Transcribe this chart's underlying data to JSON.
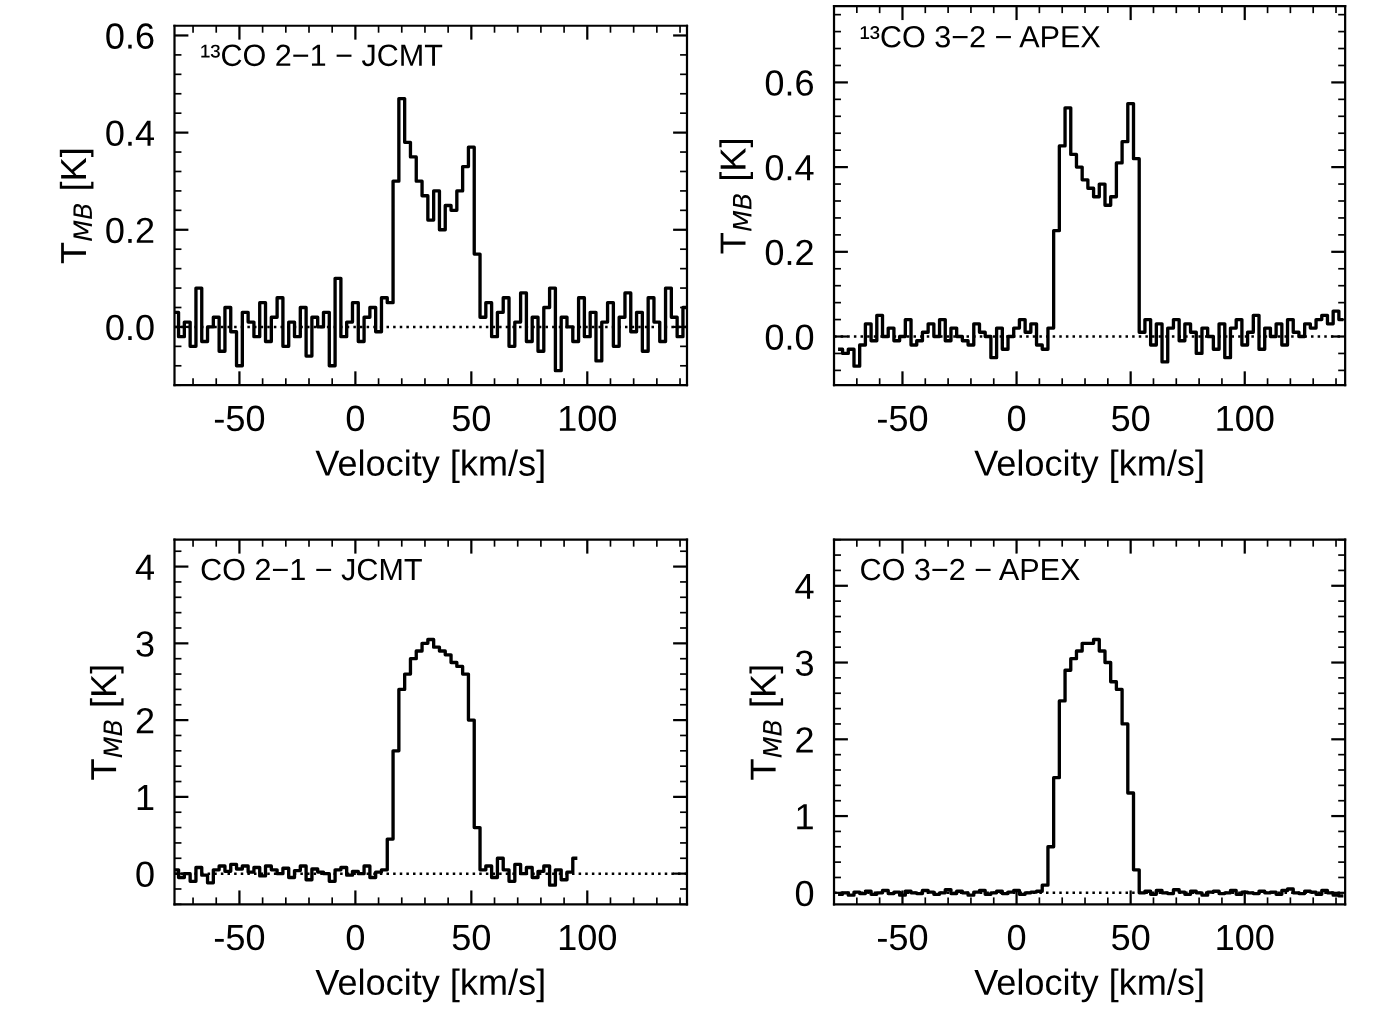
{
  "chart_data": [
    {
      "type": "step",
      "title": "¹³CO 2−1 − JCMT",
      "xlabel": "Velocity [km/s]",
      "ylabel": "T$_{MB}$ [K]",
      "color": "#000000",
      "x": [
        -77.5,
        -75,
        -72.5,
        -70,
        -67.5,
        -65,
        -62.5,
        -60,
        -57.5,
        -55,
        -52.5,
        -50,
        -47.5,
        -45,
        -42.5,
        -40,
        -37.5,
        -35,
        -32.5,
        -30,
        -27.5,
        -25,
        -22.5,
        -20,
        -17.5,
        -15,
        -12.5,
        -10,
        -7.5,
        -5,
        -2.5,
        0,
        2.5,
        5,
        7.5,
        10,
        12.5,
        15,
        17.5,
        20,
        22.5,
        25,
        27.5,
        30,
        32.5,
        35,
        37.5,
        40,
        42.5,
        45,
        47.5,
        50,
        52.5,
        55,
        57.5,
        60,
        62.5,
        65,
        67.5,
        70,
        72.5,
        75,
        77.5,
        80,
        82.5,
        85,
        87.5,
        90,
        92.5,
        95,
        97.5,
        100,
        102.5,
        105,
        107.5,
        110,
        112.5,
        115,
        117.5,
        120,
        122.5,
        125,
        127.5,
        130,
        132.5,
        135,
        137.5,
        140,
        142.5
      ],
      "values": [
        0.03,
        -0.02,
        0.01,
        -0.04,
        0.08,
        -0.03,
        0.0,
        0.02,
        -0.05,
        0.04,
        -0.01,
        -0.08,
        0.03,
        0.01,
        -0.02,
        0.05,
        -0.03,
        0.02,
        0.06,
        -0.04,
        0.01,
        -0.02,
        0.04,
        -0.06,
        0.02,
        0.0,
        0.03,
        -0.08,
        0.1,
        -0.02,
        0.01,
        0.05,
        -0.03,
        0.02,
        0.04,
        -0.01,
        0.06,
        0.05,
        0.3,
        0.47,
        0.38,
        0.35,
        0.3,
        0.27,
        0.22,
        0.28,
        0.2,
        0.25,
        0.24,
        0.28,
        0.33,
        0.37,
        0.15,
        0.02,
        0.05,
        -0.02,
        0.03,
        0.06,
        -0.04,
        0.01,
        0.07,
        -0.03,
        0.02,
        -0.05,
        0.04,
        0.08,
        -0.09,
        0.02,
        0.0,
        -0.03,
        0.06,
        -0.02,
        0.03,
        -0.07,
        0.01,
        0.05,
        -0.04,
        0.02,
        0.07,
        -0.01,
        0.03,
        -0.05,
        0.06,
        0.01,
        -0.03,
        0.08,
        0.02,
        -0.02,
        0.04
      ],
      "xlim": [
        -78,
        143
      ],
      "ylim": [
        -0.12,
        0.62
      ],
      "xticks": [
        -50,
        0,
        50,
        100
      ],
      "yticks": [
        {
          "value": 0,
          "label": "0.0"
        },
        {
          "value": 0.2,
          "label": "0.2"
        },
        {
          "value": 0.4,
          "label": "0.4"
        },
        {
          "value": 0.6,
          "label": "0.6"
        }
      ],
      "ref_lines": [
        {
          "axis": "y",
          "value": 0,
          "line_style": "dotted",
          "color": "#000000"
        }
      ]
    },
    {
      "type": "step",
      "title": "¹³CO 3−2 − APEX",
      "xlabel": "Velocity [km/s]",
      "ylabel": "T$_{MB}$ [K]",
      "color": "#000000",
      "x": [
        -77.5,
        -75,
        -72.5,
        -70,
        -67.5,
        -65,
        -62.5,
        -60,
        -57.5,
        -55,
        -52.5,
        -50,
        -47.5,
        -45,
        -42.5,
        -40,
        -37.5,
        -35,
        -32.5,
        -30,
        -27.5,
        -25,
        -22.5,
        -20,
        -17.5,
        -15,
        -12.5,
        -10,
        -7.5,
        -5,
        -2.5,
        0,
        2.5,
        5,
        7.5,
        10,
        12.5,
        15,
        17.5,
        20,
        22.5,
        25,
        27.5,
        30,
        32.5,
        35,
        37.5,
        40,
        42.5,
        45,
        47.5,
        50,
        52.5,
        55,
        57.5,
        60,
        62.5,
        65,
        67.5,
        70,
        72.5,
        75,
        77.5,
        80,
        82.5,
        85,
        87.5,
        90,
        92.5,
        95,
        97.5,
        100,
        102.5,
        105,
        107.5,
        110,
        112.5,
        115,
        117.5,
        120,
        122.5,
        125,
        127.5,
        130,
        132.5,
        135,
        137.5,
        140,
        142.5
      ],
      "values": [
        -0.03,
        -0.04,
        -0.03,
        -0.07,
        -0.02,
        0.03,
        -0.01,
        0.05,
        0.0,
        0.02,
        -0.01,
        0.0,
        0.04,
        -0.02,
        -0.01,
        0.01,
        0.03,
        0.0,
        0.04,
        -0.01,
        0.02,
        0.0,
        -0.01,
        -0.02,
        0.03,
        0.01,
        0.0,
        -0.05,
        0.02,
        -0.03,
        0.0,
        0.02,
        0.04,
        0.01,
        0.03,
        -0.02,
        -0.03,
        0.02,
        0.25,
        0.45,
        0.54,
        0.43,
        0.4,
        0.37,
        0.35,
        0.33,
        0.36,
        0.31,
        0.33,
        0.41,
        0.46,
        0.55,
        0.42,
        0.01,
        0.04,
        -0.02,
        0.03,
        -0.06,
        0.02,
        0.04,
        -0.01,
        0.03,
        0.01,
        -0.04,
        0.02,
        0.0,
        -0.03,
        0.03,
        -0.05,
        0.02,
        0.04,
        -0.02,
        0.01,
        0.05,
        -0.03,
        0.02,
        0.0,
        0.03,
        -0.02,
        0.04,
        0.01,
        0.0,
        0.03,
        0.02,
        0.04,
        0.05,
        0.03,
        0.06,
        0.04
      ],
      "xlim": [
        -80,
        144
      ],
      "ylim": [
        -0.115,
        0.78
      ],
      "xticks": [
        -50,
        0,
        50,
        100
      ],
      "yticks": [
        {
          "value": 0,
          "label": "0.0"
        },
        {
          "value": 0.2,
          "label": "0.2"
        },
        {
          "value": 0.4,
          "label": "0.4"
        },
        {
          "value": 0.6,
          "label": "0.6"
        }
      ],
      "ref_lines": [
        {
          "axis": "y",
          "value": 0,
          "line_style": "dotted",
          "color": "#000000"
        }
      ]
    },
    {
      "type": "step",
      "title": "CO 2−1 − JCMT",
      "xlabel": "Velocity [km/s]",
      "ylabel": "T$_{MB}$ [K]",
      "color": "#000000",
      "x": [
        -77.5,
        -75,
        -72.5,
        -70,
        -67.5,
        -65,
        -62.5,
        -60,
        -57.5,
        -55,
        -52.5,
        -50,
        -47.5,
        -45,
        -42.5,
        -40,
        -37.5,
        -35,
        -32.5,
        -30,
        -27.5,
        -25,
        -22.5,
        -20,
        -17.5,
        -15,
        -12.5,
        -10,
        -7.5,
        -5,
        -2.5,
        0,
        2.5,
        5,
        7.5,
        10,
        12.5,
        15,
        17.5,
        20,
        22.5,
        25,
        27.5,
        30,
        32.5,
        35,
        37.5,
        40,
        42.5,
        45,
        47.5,
        50,
        52.5,
        55,
        57.5,
        60,
        62.5,
        65,
        67.5,
        70,
        72.5,
        75,
        77.5,
        80,
        82.5,
        85,
        87.5,
        90,
        92.5,
        95
      ],
      "values": [
        0.05,
        -0.05,
        0.0,
        -0.1,
        0.08,
        -0.02,
        -0.12,
        0.05,
        0.1,
        0.03,
        0.12,
        0.06,
        0.1,
        0.02,
        0.08,
        -0.03,
        0.1,
        0.05,
        0.0,
        0.07,
        -0.05,
        0.04,
        0.1,
        -0.08,
        0.06,
        0.02,
        0.0,
        -0.1,
        0.05,
        0.08,
        -0.02,
        0.03,
        0.0,
        0.1,
        -0.05,
        0.02,
        0.05,
        0.45,
        1.6,
        2.4,
        2.6,
        2.8,
        2.9,
        3.0,
        3.05,
        2.95,
        2.9,
        2.85,
        2.75,
        2.7,
        2.6,
        2.0,
        0.6,
        0.05,
        0.1,
        -0.05,
        0.2,
        0.05,
        -0.1,
        0.12,
        0.0,
        0.08,
        -0.05,
        0.03,
        0.1,
        -0.15,
        0.05,
        -0.08,
        0.02,
        0.2
      ],
      "xlim": [
        -78,
        143
      ],
      "ylim": [
        -0.4,
        4.35
      ],
      "xticks": [
        -50,
        0,
        50,
        100
      ],
      "yticks": [
        0,
        1,
        2,
        3,
        4
      ],
      "ref_lines": [
        {
          "axis": "y",
          "value": 0,
          "line_style": "dotted",
          "color": "#000000"
        }
      ]
    },
    {
      "type": "step",
      "title": "CO 3−2 − APEX",
      "xlabel": "Velocity [km/s]",
      "ylabel": "T$_{MB}$ [K]",
      "color": "#000000",
      "x": [
        -77.5,
        -75,
        -72.5,
        -70,
        -67.5,
        -65,
        -62.5,
        -60,
        -57.5,
        -55,
        -52.5,
        -50,
        -47.5,
        -45,
        -42.5,
        -40,
        -37.5,
        -35,
        -32.5,
        -30,
        -27.5,
        -25,
        -22.5,
        -20,
        -17.5,
        -15,
        -12.5,
        -10,
        -7.5,
        -5,
        -2.5,
        0,
        2.5,
        5,
        7.5,
        10,
        12.5,
        15,
        17.5,
        20,
        22.5,
        25,
        27.5,
        30,
        32.5,
        35,
        37.5,
        40,
        42.5,
        45,
        47.5,
        50,
        52.5,
        55,
        57.5,
        60,
        62.5,
        65,
        67.5,
        70,
        72.5,
        75,
        77.5,
        80,
        82.5,
        85,
        87.5,
        90,
        92.5,
        95,
        97.5,
        100,
        102.5,
        105,
        107.5,
        110,
        112.5,
        115,
        117.5,
        120,
        122.5,
        125,
        127.5,
        130,
        132.5,
        135,
        137.5,
        140,
        142.5
      ],
      "values": [
        -0.02,
        0.0,
        -0.03,
        0.01,
        -0.01,
        0.02,
        -0.02,
        0.0,
        0.03,
        -0.01,
        0.01,
        -0.03,
        0.02,
        0.0,
        -0.01,
        0.03,
        0.01,
        -0.02,
        0.0,
        0.04,
        -0.01,
        0.02,
        0.0,
        -0.03,
        0.01,
        0.03,
        -0.02,
        0.0,
        0.02,
        -0.01,
        0.01,
        0.03,
        -0.02,
        0.0,
        0.01,
        0.02,
        0.1,
        0.6,
        1.5,
        2.5,
        2.9,
        3.05,
        3.15,
        3.25,
        3.25,
        3.3,
        3.15,
        3.0,
        2.75,
        2.65,
        2.2,
        1.3,
        0.3,
        0.0,
        0.02,
        -0.02,
        0.03,
        0.0,
        -0.01,
        0.04,
        0.01,
        -0.02,
        0.02,
        0.0,
        -0.03,
        0.01,
        0.02,
        -0.01,
        0.0,
        0.03,
        -0.02,
        0.01,
        0.0,
        -0.01,
        0.02,
        0.0,
        0.01,
        -0.02,
        0.03,
        0.05,
        0.0,
        -0.01,
        0.02,
        0.01,
        -0.02,
        0.03,
        0.0,
        -0.03,
        -0.04
      ],
      "xlim": [
        -80,
        144
      ],
      "ylim": [
        -0.15,
        4.6
      ],
      "xticks": [
        -50,
        0,
        50,
        100
      ],
      "yticks": [
        0,
        1,
        2,
        3,
        4
      ],
      "ref_lines": [
        {
          "axis": "y",
          "value": 0,
          "line_style": "dotted",
          "color": "#000000"
        }
      ]
    }
  ]
}
